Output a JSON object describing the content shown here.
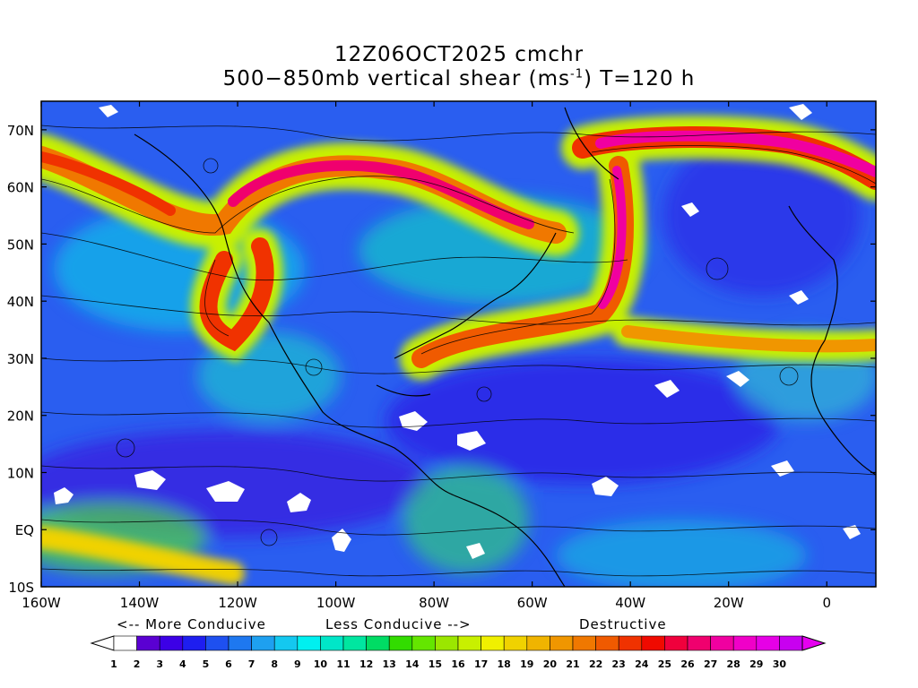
{
  "title": {
    "line1": "12Z06OCT2025 cmchr",
    "line2_pre": "500−850mb vertical shear (ms",
    "line2_sup": "-1",
    "line2_post": ") T=120 h"
  },
  "map": {
    "lon_labels": [
      "160W",
      "140W",
      "120W",
      "100W",
      "80W",
      "60W",
      "40W",
      "20W",
      "0"
    ],
    "lat_labels": [
      "70N",
      "60N",
      "50N",
      "40N",
      "30N",
      "20N",
      "10N",
      "EQ",
      "10S"
    ],
    "lon_range": [
      -160,
      10
    ],
    "lat_range": [
      -10,
      75
    ]
  },
  "colorbar": {
    "label_more": "<-- More Conducive",
    "label_less": "Less Conducive -->",
    "label_destructive": "Destructive",
    "ticks": [
      "1",
      "2",
      "3",
      "4",
      "5",
      "6",
      "7",
      "8",
      "9",
      "10",
      "11",
      "12",
      "13",
      "14",
      "15",
      "16",
      "17",
      "18",
      "19",
      "20",
      "21",
      "22",
      "23",
      "24",
      "25",
      "26",
      "27",
      "28",
      "29",
      "30"
    ],
    "colors": [
      "#ffffff",
      "#5a00d2",
      "#3c00e6",
      "#1e1ef0",
      "#1e50f0",
      "#1e78f0",
      "#1ea0f0",
      "#14c8f0",
      "#00f0f0",
      "#00e6c8",
      "#00e6a0",
      "#00dc64",
      "#32dc00",
      "#64e600",
      "#9be600",
      "#c8f000",
      "#f0f000",
      "#f0d200",
      "#f0b400",
      "#f09600",
      "#f07800",
      "#f05a00",
      "#f03200",
      "#f00a00",
      "#f0003c",
      "#f0006e",
      "#f000a0",
      "#f000c8",
      "#e600e6",
      "#c800f0"
    ]
  }
}
